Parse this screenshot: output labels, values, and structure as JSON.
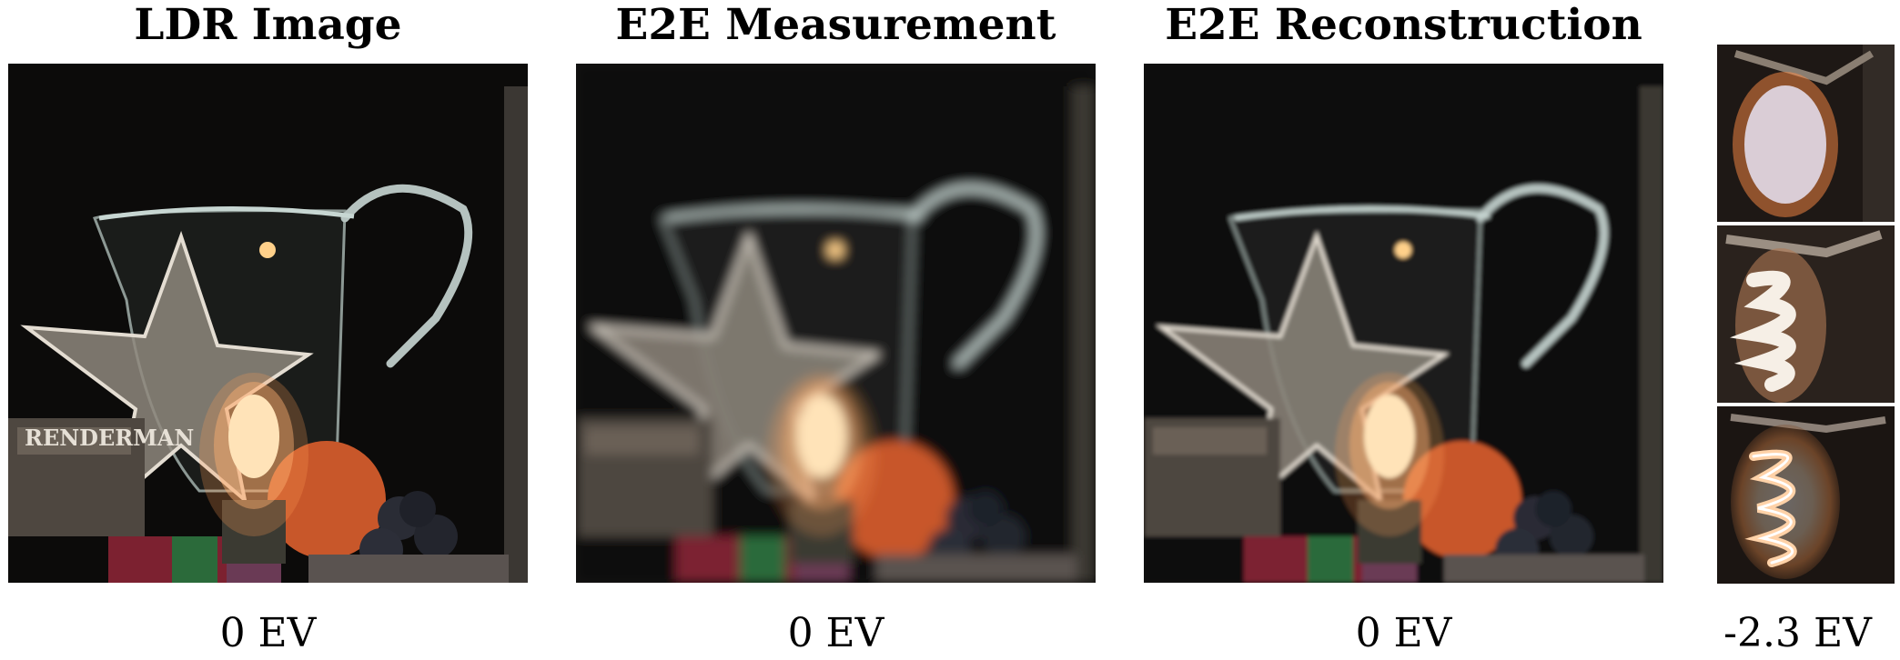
{
  "panels": [
    {
      "title": "LDR Image",
      "caption": "0 EV"
    },
    {
      "title": "E2E Measurement",
      "caption": "0 EV"
    },
    {
      "title": "E2E Reconstruction",
      "caption": "0 EV"
    }
  ],
  "crops": {
    "caption": "-2.3 EV"
  },
  "scene": {
    "sign_text": "RENDERMAN",
    "colors": {
      "background": "#0c0b0a",
      "bulb_glow": "#ffb070",
      "apple": "#c8572a",
      "star": "#cfc8bd"
    }
  }
}
